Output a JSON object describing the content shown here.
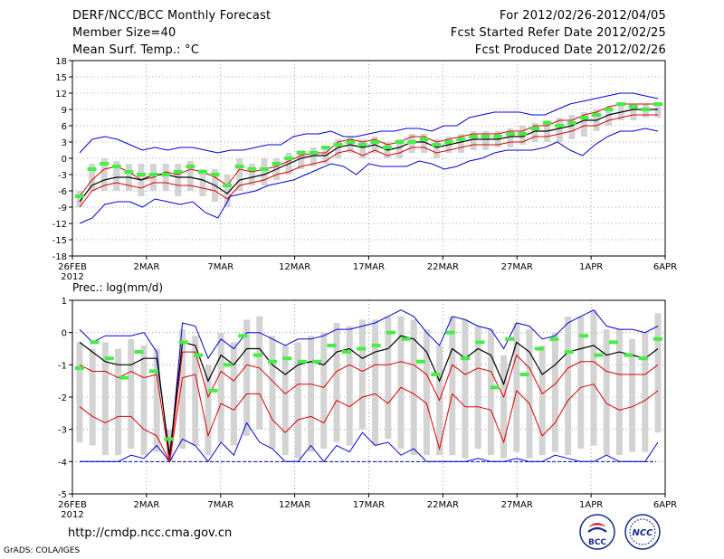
{
  "header": {
    "title": "DERF/NCC/BCC Monthly Forecast",
    "member_size": "Member Size=40",
    "variable": "Mean Surf. Temp.: °C",
    "period": "For 2012/02/26-2012/04/05",
    "started": "Fcst Started Refer Date 2012/02/25",
    "produced": "Fcst Produced Date 2012/02/26"
  },
  "footer": {
    "url": "http://cmdp.ncc.cma.gov.cn",
    "credit": "GrADS: COLA/IGES",
    "logo_bcc": "BCC",
    "logo_ncc": "NCC"
  },
  "colors": {
    "member_box": "#d3d3d3",
    "observation": "#44ee44",
    "envelope": "#0000dd",
    "spread": "#dd0000",
    "ensemble_mean": "#000000"
  },
  "chart_data": [
    {
      "type": "line",
      "title": "Mean Surf. Temp.: °C",
      "xlabel": "",
      "ylabel": "",
      "ylim": [
        -18,
        18
      ],
      "yticks": [
        "-18",
        "-15",
        "-12",
        "-9",
        "-6",
        "-3",
        "0",
        "3",
        "6",
        "9",
        "12",
        "15",
        "18"
      ],
      "x_range": [
        0,
        40
      ],
      "xticks": [
        {
          "x": 0,
          "label": "26FEB",
          "sub": "2012"
        },
        {
          "x": 5,
          "label": "2MAR"
        },
        {
          "x": 10,
          "label": "7MAR"
        },
        {
          "x": 15,
          "label": "12MAR"
        },
        {
          "x": 20,
          "label": "17MAR"
        },
        {
          "x": 25,
          "label": "22MAR"
        },
        {
          "x": 30,
          "label": "27MAR"
        },
        {
          "x": 35,
          "label": "1APR"
        },
        {
          "x": 40,
          "label": "6APR"
        }
      ],
      "grid": true,
      "series": [
        {
          "name": "max",
          "values": [
            1,
            3.5,
            4,
            3.5,
            2.5,
            1.5,
            2,
            1.5,
            2,
            2,
            1.5,
            1,
            1.5,
            1.5,
            2,
            2.5,
            2.5,
            4,
            4.5,
            4.5,
            5,
            4,
            4,
            4.5,
            5,
            5,
            5.5,
            5.5,
            5,
            6,
            6,
            7.5,
            8,
            8.5,
            8.5,
            8.5,
            8,
            8,
            9,
            10,
            10.5,
            11,
            11.5,
            12,
            12,
            11.5,
            11
          ]
        },
        {
          "name": "upper",
          "values": [
            -7,
            -4,
            -2,
            -1.5,
            -2.5,
            -4,
            -3.5,
            -2.5,
            -3,
            -2,
            -2.5,
            -3.5,
            -5,
            -2,
            -2.5,
            -2,
            -1.5,
            -0.5,
            0.5,
            1,
            1,
            3,
            3.5,
            3,
            3.5,
            2.5,
            3,
            4,
            4,
            3,
            3.5,
            4,
            4.5,
            4.5,
            4.5,
            5,
            5,
            6,
            6,
            7,
            7,
            8,
            8.5,
            9.5,
            10,
            10,
            10,
            10
          ]
        },
        {
          "name": "mean",
          "values": [
            -8,
            -5,
            -4,
            -3.5,
            -3.5,
            -4,
            -3,
            -3,
            -3.5,
            -3.5,
            -4,
            -5,
            -6.5,
            -4,
            -3.5,
            -3,
            -2,
            -1,
            0,
            0.5,
            0.5,
            2,
            2.5,
            2,
            2.5,
            1.5,
            2,
            3,
            3,
            2,
            2.5,
            3,
            3.5,
            3.5,
            3.5,
            4,
            4,
            5,
            5,
            5.5,
            6,
            7,
            7,
            8,
            8.5,
            9,
            9,
            9
          ]
        },
        {
          "name": "lower",
          "values": [
            -9,
            -6,
            -5,
            -4.5,
            -5,
            -5.5,
            -4.5,
            -4.5,
            -5,
            -5,
            -5.5,
            -6,
            -7.5,
            -5,
            -4.5,
            -4,
            -3,
            -2.5,
            -1.5,
            -1,
            -0.5,
            1,
            1.5,
            0.5,
            1.5,
            0.5,
            1,
            2,
            2,
            1,
            1.5,
            2,
            2.5,
            2.5,
            2.5,
            3,
            3,
            4,
            4,
            4.5,
            5,
            6,
            6,
            7,
            7.5,
            8,
            8,
            8
          ]
        },
        {
          "name": "min",
          "values": [
            -12,
            -11,
            -8.5,
            -8,
            -8,
            -9,
            -7.5,
            -8,
            -8.5,
            -8,
            -10,
            -11,
            -7,
            -6.5,
            -6,
            -5,
            -4.5,
            -4,
            -3,
            -2,
            -1,
            -1.5,
            -3,
            -1,
            -1.5,
            -1.5,
            -1.5,
            -0.5,
            -1,
            -2,
            -1.5,
            -0.5,
            0,
            1,
            1.5,
            1.5,
            1.5,
            2,
            3,
            1.5,
            0.5,
            2.5,
            4,
            5,
            5,
            5.5,
            5
          ]
        },
        {
          "name": "box_high",
          "values": [
            -6,
            -1,
            0,
            -0.5,
            -1,
            -1,
            -1,
            -1,
            -1,
            -0.5,
            -2,
            -2,
            -3,
            0,
            -1,
            0,
            0,
            1,
            1.5,
            2,
            2,
            3.5,
            4,
            3.5,
            4,
            3,
            3.5,
            4.5,
            4.5,
            3.5,
            4,
            4.5,
            5,
            5,
            5,
            5.5,
            6,
            6.5,
            7,
            7.5,
            8,
            8.5,
            9,
            9.5,
            10,
            10,
            10,
            10
          ]
        },
        {
          "name": "box_low",
          "values": [
            -9,
            -6,
            -6,
            -6,
            -6,
            -7,
            -6,
            -6,
            -7,
            -6,
            -7,
            -8,
            -9,
            -6,
            -5,
            -5,
            -4,
            -3,
            -2,
            -1.5,
            -1,
            0,
            1,
            0,
            1,
            0,
            0,
            1,
            1,
            0,
            1,
            1,
            1.5,
            1.5,
            2,
            2,
            2.5,
            3,
            3,
            3,
            3.5,
            4,
            5,
            6,
            7,
            7,
            7.5,
            7.5
          ]
        },
        {
          "name": "obs",
          "values": [
            -7,
            -2,
            -1,
            -1.5,
            -2.5,
            -3,
            -3,
            -3,
            -2.5,
            -1.5,
            -2.5,
            -3,
            -5,
            -1.5,
            -2,
            -2,
            -1,
            0,
            1,
            1,
            2,
            2.5,
            3,
            2.5,
            3,
            2,
            3,
            3,
            3.5,
            2.5,
            3,
            3.5,
            4,
            4,
            4,
            4.5,
            4.5,
            5.5,
            6.5,
            6,
            6.5,
            7.5,
            8,
            9,
            10,
            9.5,
            9,
            10
          ]
        }
      ]
    },
    {
      "type": "line",
      "title": "Prec.: log(mm/d)",
      "xlabel": "",
      "ylabel": "",
      "ylim": [
        -5,
        1
      ],
      "yticks": [
        "-5",
        "-4",
        "-3",
        "-2",
        "-1",
        "0",
        "1"
      ],
      "x_range": [
        0,
        40
      ],
      "xticks": [
        {
          "x": 0,
          "label": "26FEB",
          "sub": "2012"
        },
        {
          "x": 5,
          "label": "2MAR"
        },
        {
          "x": 10,
          "label": "7MAR"
        },
        {
          "x": 15,
          "label": "12MAR"
        },
        {
          "x": 20,
          "label": "17MAR"
        },
        {
          "x": 25,
          "label": "22MAR"
        },
        {
          "x": 30,
          "label": "27MAR"
        },
        {
          "x": 35,
          "label": "1APR"
        },
        {
          "x": 40,
          "label": "6APR"
        }
      ],
      "grid": true,
      "floor": -4,
      "series": [
        {
          "name": "max",
          "values": [
            0.1,
            -0.3,
            -0.1,
            -0.1,
            -0.1,
            0,
            -0.6,
            -4,
            0.3,
            0.2,
            -0.8,
            -0.2,
            -0.5,
            0,
            0,
            -0.2,
            -0.4,
            -0.2,
            -0.2,
            -0.1,
            0.1,
            0.1,
            0.2,
            0.3,
            0.5,
            0.7,
            0.5,
            0,
            -0.4,
            0.5,
            0.4,
            0.2,
            0.1,
            -0.5,
            0.3,
            0.2,
            -0.2,
            -0.1,
            0.3,
            0.5,
            0.7,
            0.2,
            0.1,
            0.1,
            0,
            0.2
          ]
        },
        {
          "name": "mean",
          "values": [
            -0.3,
            -0.6,
            -0.9,
            -1,
            -1,
            -0.8,
            -0.8,
            -3.8,
            -0.3,
            -0.4,
            -1.5,
            -0.7,
            -1,
            -0.5,
            -0.5,
            -1,
            -1.3,
            -1,
            -0.9,
            -1,
            -0.6,
            -0.5,
            -0.8,
            -0.6,
            -0.5,
            -0.1,
            -0.2,
            -0.6,
            -1.5,
            -0.5,
            -0.8,
            -0.5,
            -0.7,
            -1.6,
            -0.3,
            -0.6,
            -1.3,
            -1,
            -0.6,
            -0.5,
            -0.4,
            -0.7,
            -0.6,
            -0.7,
            -0.8,
            -0.5
          ]
        },
        {
          "name": "upper",
          "values": [
            -1,
            -1.2,
            -1.2,
            -1.4,
            -1.2,
            -1.4,
            -1.3,
            -4,
            -0.6,
            -0.6,
            -2,
            -1.2,
            -1.5,
            -1,
            -1.1,
            -1.5,
            -1.9,
            -1.6,
            -1.6,
            -1.7,
            -1.2,
            -1,
            -1.2,
            -1,
            -1,
            -0.9,
            -1,
            -1.3,
            -2.1,
            -1,
            -1.3,
            -1.1,
            -1.2,
            -2,
            -0.7,
            -1.1,
            -1.9,
            -1.6,
            -1.1,
            -0.9,
            -0.9,
            -1.2,
            -1.3,
            -1.3,
            -1.3,
            -1
          ]
        },
        {
          "name": "lower",
          "values": [
            -2.3,
            -2.6,
            -2.8,
            -2.6,
            -2.6,
            -3,
            -3.2,
            -4,
            -1.4,
            -1.3,
            -3.2,
            -2.2,
            -2.4,
            -1.9,
            -1.9,
            -2.7,
            -3.1,
            -2.7,
            -2.6,
            -2.8,
            -2.1,
            -2.3,
            -2,
            -1.9,
            -2.2,
            -1.7,
            -1.9,
            -2.2,
            -3.6,
            -1.9,
            -2.3,
            -2.3,
            -2.4,
            -3.4,
            -1.8,
            -2.2,
            -3.2,
            -2.8,
            -2.1,
            -1.7,
            -1.6,
            -2.2,
            -2.4,
            -2.3,
            -2.1,
            -1.8
          ]
        },
        {
          "name": "min",
          "values": [
            -4,
            -4,
            -4,
            -4,
            -3.8,
            -3.9,
            -3.5,
            -4,
            -3.3,
            -3.5,
            -4,
            -3.4,
            -3.8,
            -2.8,
            -3.4,
            -3.6,
            -4,
            -4,
            -3.5,
            -4,
            -3.5,
            -3.7,
            -3.1,
            -3.5,
            -3.4,
            -3.8,
            -3.6,
            -4,
            -4,
            -4,
            -4,
            -3.9,
            -4,
            -4,
            -3.9,
            -4,
            -4,
            -3.8,
            -3.9,
            -4,
            -4,
            -3.8,
            -4,
            -4,
            -4,
            -3.4
          ]
        },
        {
          "name": "box_high",
          "values": [
            -0.3,
            -0.5,
            -0.3,
            -0.5,
            -0.2,
            -0.4,
            -0.5,
            -3,
            0.1,
            -0.1,
            -1,
            0,
            -0.3,
            0.4,
            0.5,
            -0.1,
            -0.4,
            -0.3,
            -0.1,
            0,
            0.3,
            0.2,
            0.4,
            0.4,
            0.5,
            0.5,
            0.4,
            0.1,
            -0.4,
            0.5,
            0.4,
            0.2,
            0.1,
            -0.7,
            0.3,
            0.1,
            -0.4,
            0,
            0.5,
            0.5,
            0.7,
            0.1,
            0.1,
            -0.2,
            0,
            0.6
          ]
        },
        {
          "name": "box_low",
          "values": [
            -3.4,
            -3.5,
            -3.8,
            -3.8,
            -3.6,
            -3.8,
            -3.7,
            -4,
            -3.6,
            -3.5,
            -3.8,
            -3.4,
            -3.5,
            -3.2,
            -3,
            -3.6,
            -3.8,
            -3.9,
            -3.7,
            -3.6,
            -3.4,
            -3.5,
            -3,
            -3.5,
            -3.3,
            -3.6,
            -3.8,
            -3.8,
            -3.8,
            -3.8,
            -3.9,
            -3.6,
            -3.8,
            -3.9,
            -3.7,
            -3.9,
            -3.8,
            -3.7,
            -3.8,
            -3.6,
            -3.5,
            -3.8,
            -3.8,
            -3.7,
            -3.7,
            -3.1
          ]
        },
        {
          "name": "obs",
          "values": [
            -1.1,
            -0.3,
            -0.8,
            -1.4,
            -0.6,
            -1.2,
            -3.3,
            -0.3,
            -0.7,
            -1.8,
            -1,
            -0.1,
            -0.7,
            -0.9,
            -0.8,
            -0.9,
            -0.9,
            -0.4,
            -0.6,
            -0.5,
            -0.4,
            0,
            -0.2,
            -0.9,
            -1.3,
            0,
            -0.8,
            -0.3,
            -1.7,
            -0.2,
            -1.3,
            -0.5,
            -0.2,
            -0.6,
            -0.1,
            -0.7,
            -0.3,
            -0.7,
            -0.8,
            -0.2
          ]
        }
      ]
    }
  ]
}
